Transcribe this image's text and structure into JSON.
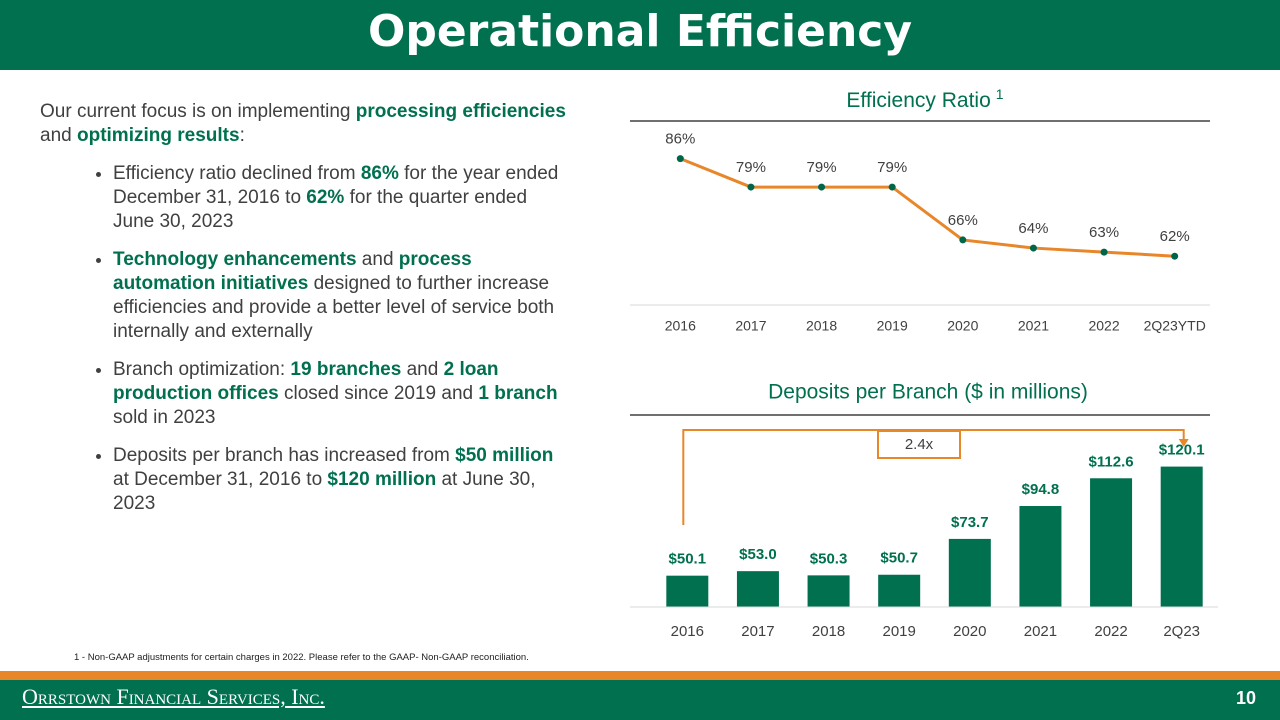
{
  "header": {
    "title": "Operational Efficiency"
  },
  "intro": [
    {
      "text": "Our current focus is on implementing ",
      "bold": false
    },
    {
      "text": "processing efficiencies",
      "bold": true
    },
    {
      "text": " and ",
      "bold": false
    },
    {
      "text": "optimizing results",
      "bold": true
    },
    {
      "text": ":",
      "bold": false
    }
  ],
  "bullets": [
    [
      {
        "text": "Efficiency ratio declined from ",
        "bold": false
      },
      {
        "text": "86%",
        "bold": true
      },
      {
        "text": " for the year ended December 31, 2016 to ",
        "bold": false
      },
      {
        "text": "62%",
        "bold": true
      },
      {
        "text": " for the quarter ended June 30, 2023",
        "bold": false
      }
    ],
    [
      {
        "text": "Technology enhancements",
        "bold": true
      },
      {
        "text": " and ",
        "bold": false
      },
      {
        "text": "process automation initiatives",
        "bold": true
      },
      {
        "text": " designed to further increase efficiencies and provide a better level of service both internally and externally",
        "bold": false
      }
    ],
    [
      {
        "text": "Branch optimization: ",
        "bold": false
      },
      {
        "text": "19 branches",
        "bold": true
      },
      {
        "text": " and ",
        "bold": false
      },
      {
        "text": "2 loan production offices",
        "bold": true
      },
      {
        "text": " closed since 2019 and ",
        "bold": false
      },
      {
        "text": "1 branch",
        "bold": true
      },
      {
        "text": " sold in 2023",
        "bold": false
      }
    ],
    [
      {
        "text": "Deposits per branch has increased from ",
        "bold": false
      },
      {
        "text": "$50 million",
        "bold": true
      },
      {
        "text": " at December 31, 2016 to ",
        "bold": false
      },
      {
        "text": "$120 million",
        "bold": true
      },
      {
        "text": " at June 30, 2023",
        "bold": false
      }
    ]
  ],
  "footnote": "1 - Non-GAAP adjustments for certain charges in 2022. Please refer to the GAAP- Non-GAAP reconciliation.",
  "footer": {
    "company": "Orrstown Financial Services, Inc.",
    "page": 10
  },
  "chart_data": [
    {
      "type": "line",
      "title": "Efficiency Ratio",
      "title_note": "1",
      "categories": [
        "2016",
        "2017",
        "2018",
        "2019",
        "2020",
        "2021",
        "2022",
        "2Q23YTD"
      ],
      "values": [
        86,
        79,
        79,
        79,
        66,
        64,
        63,
        62
      ],
      "value_labels": [
        "86%",
        "79%",
        "79%",
        "79%",
        "66%",
        "64%",
        "63%",
        "62%"
      ],
      "color": "#e8862a",
      "marker_color": "#00664a",
      "ylim": [
        50,
        95
      ]
    },
    {
      "type": "bar",
      "title": "Deposits per Branch ($ in millions)",
      "categories": [
        "2016",
        "2017",
        "2018",
        "2019",
        "2020",
        "2021",
        "2022",
        "2Q23"
      ],
      "values": [
        50.1,
        53.0,
        50.3,
        50.7,
        73.7,
        94.8,
        112.6,
        120.1
      ],
      "value_labels": [
        "$50.1",
        "$53.0",
        "$50.3",
        "$50.7",
        "$73.7",
        "$94.8",
        "$112.6",
        "$120.1"
      ],
      "color": "#00704f",
      "annotation": "2.4x",
      "annotation_color": "#e8862a",
      "ylim": [
        30,
        150
      ]
    }
  ]
}
